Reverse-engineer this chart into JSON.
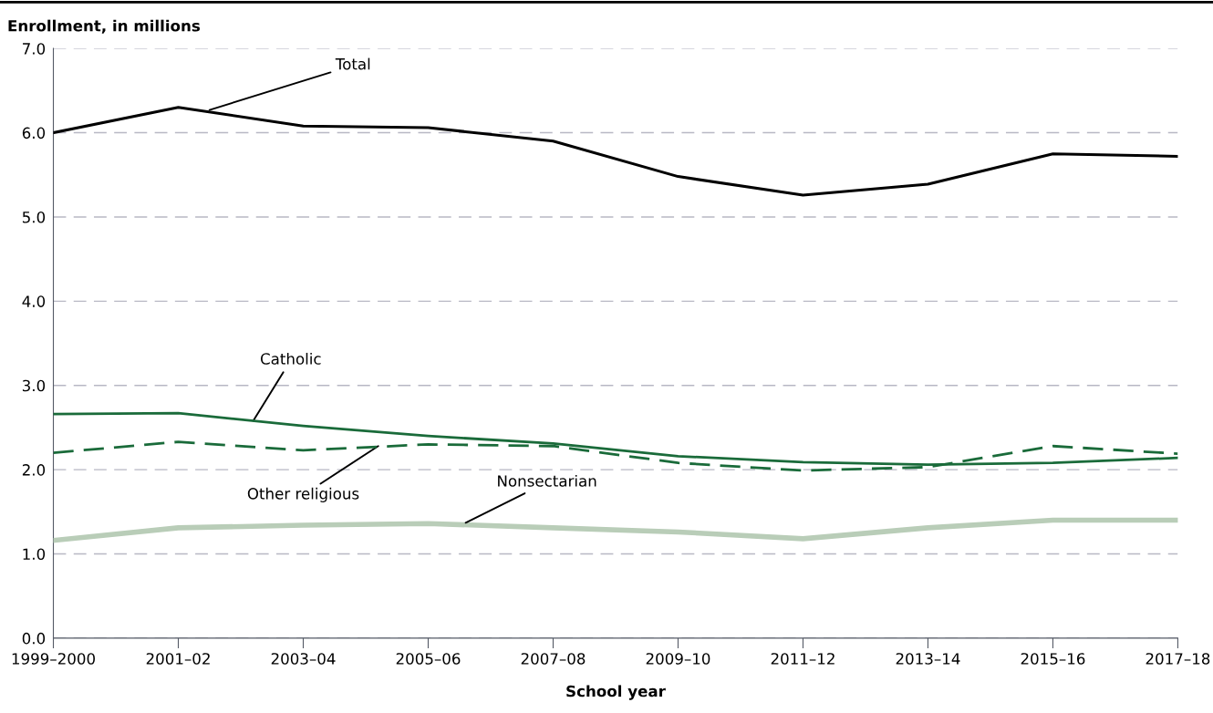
{
  "chart_data": {
    "type": "line",
    "ylabel": "Enrollment, in millions",
    "xlabel": "School year",
    "categories": [
      "1999–2000",
      "2001–02",
      "2003–04",
      "2005–06",
      "2007–08",
      "2009–10",
      "2011–12",
      "2013–14",
      "2015–16",
      "2017–18"
    ],
    "series": [
      {
        "name": "Total",
        "color": "#000000",
        "line_style": "solid",
        "values": [
          6.0,
          6.3,
          6.08,
          6.06,
          5.9,
          5.48,
          5.26,
          5.39,
          5.75,
          5.72
        ]
      },
      {
        "name": "Catholic",
        "color": "#1a6b3a",
        "line_style": "solid",
        "values": [
          2.66,
          2.67,
          2.52,
          2.4,
          2.31,
          2.16,
          2.09,
          2.06,
          2.08,
          2.14
        ]
      },
      {
        "name": "Other religious",
        "color": "#1a6b3a",
        "line_style": "dashed",
        "values": [
          2.2,
          2.33,
          2.23,
          2.3,
          2.28,
          2.08,
          1.99,
          2.03,
          2.28,
          2.19
        ]
      },
      {
        "name": "Nonsectarian",
        "color": "#b9cdb8",
        "line_style": "solid",
        "values": [
          1.16,
          1.31,
          1.34,
          1.36,
          1.31,
          1.26,
          1.18,
          1.31,
          1.4,
          1.4
        ]
      }
    ],
    "ylim": [
      0,
      7
    ],
    "yticks": [
      {
        "value": 0,
        "label": "0.0"
      },
      {
        "value": 1,
        "label": "1.0"
      },
      {
        "value": 2,
        "label": "2.0"
      },
      {
        "value": 3,
        "label": "3.0"
      },
      {
        "value": 4,
        "label": "4.0"
      },
      {
        "value": 5,
        "label": "5.0"
      },
      {
        "value": 6,
        "label": "6.0"
      },
      {
        "value": 7,
        "label": "7.0"
      }
    ],
    "grid": "y",
    "legend": false,
    "marker": "none"
  }
}
